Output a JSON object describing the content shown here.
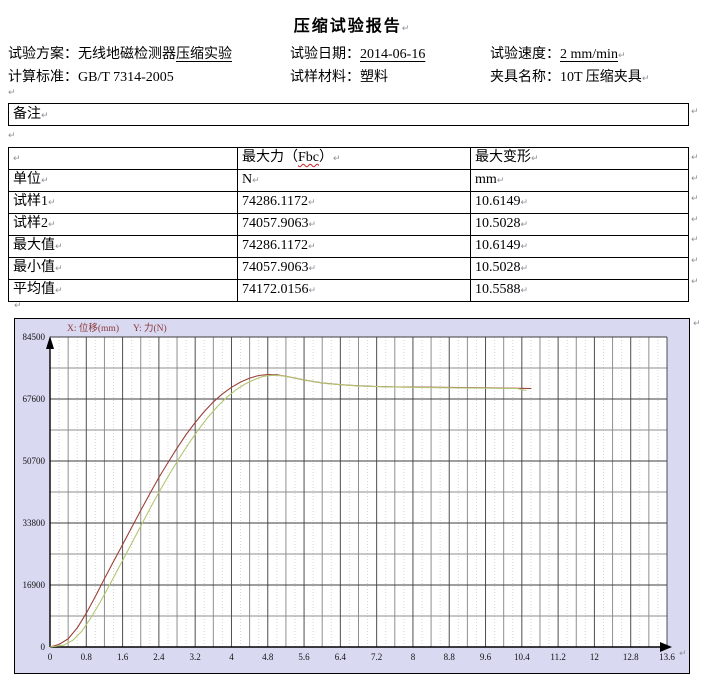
{
  "title": "压缩试验报告",
  "pilcrow": "↵",
  "header_fields": {
    "scheme_label": "试验方案：",
    "scheme_value": "无线地磁检测器",
    "scheme_underlined": "压缩实验",
    "date_label": "试验日期：",
    "date_value": "2014-06-16",
    "speed_label": "试验速度：",
    "speed_value": "2 mm/min",
    "standard_label": "计算标准：",
    "standard_value": "GB/T 7314-2005",
    "material_label": "试样材料：",
    "material_value": "塑料",
    "fixture_label": "夹具名称：",
    "fixture_value": "10T 压缩夹具"
  },
  "remarks_label": "备注",
  "table": {
    "header_col2_prefix": "最大力（",
    "header_col2_term": "Fbc",
    "header_col2_suffix": "）",
    "header_col3": "最大变形",
    "rows": [
      [
        "单位",
        "N",
        "mm"
      ],
      [
        "试样1",
        "74286.1172",
        "10.6149"
      ],
      [
        "试样2",
        "74057.9063",
        "10.5028"
      ],
      [
        "最大值",
        "74286.1172",
        "10.6149"
      ],
      [
        "最小值",
        "74057.9063",
        "10.5028"
      ],
      [
        "平均值",
        "74172.0156",
        "10.5588"
      ]
    ]
  },
  "chart_data": {
    "type": "line",
    "legend_x": "X: 位移(mm)",
    "legend_y": "Y: 力(N)",
    "xlabel": "位移(mm)",
    "ylabel": "力(N)",
    "xlim": [
      0,
      13.6
    ],
    "ylim": [
      0,
      84500
    ],
    "x_tick_step": 0.8,
    "x_minor_step": 0.4,
    "y_tick_step": 16900,
    "y_minor_step": 8450,
    "grid": true,
    "legend_position": "top-left",
    "x_tick_labels": [
      "0",
      "0.8",
      "1.6",
      "2.4",
      "3.2",
      "4",
      "4.8",
      "5.6",
      "6.4",
      "7.2",
      "8",
      "8.8",
      "9.6",
      "10.4",
      "11.2",
      "12",
      "12.8",
      "13.6"
    ],
    "y_tick_labels": [
      "0",
      "16900",
      "33800",
      "50700",
      "67600",
      "84500"
    ],
    "panel_bg": "#d9d9f2",
    "plot_bg": "#ffffff",
    "legend_color": "#8b3a3a",
    "series": [
      {
        "name": "试样1",
        "color": "#9a4038",
        "points": [
          [
            0,
            0
          ],
          [
            0.2,
            700
          ],
          [
            0.4,
            2200
          ],
          [
            0.6,
            5200
          ],
          [
            0.8,
            9200
          ],
          [
            1.0,
            13800
          ],
          [
            1.2,
            18600
          ],
          [
            1.4,
            23300
          ],
          [
            1.6,
            27900
          ],
          [
            1.8,
            32600
          ],
          [
            2.0,
            37200
          ],
          [
            2.2,
            41800
          ],
          [
            2.4,
            46200
          ],
          [
            2.6,
            50300
          ],
          [
            2.8,
            54200
          ],
          [
            3.0,
            57900
          ],
          [
            3.2,
            61200
          ],
          [
            3.4,
            64200
          ],
          [
            3.6,
            66800
          ],
          [
            3.8,
            69000
          ],
          [
            4.0,
            70800
          ],
          [
            4.2,
            72200
          ],
          [
            4.4,
            73300
          ],
          [
            4.6,
            74000
          ],
          [
            4.8,
            74286
          ],
          [
            5.0,
            74200
          ],
          [
            5.2,
            73800
          ],
          [
            5.4,
            73300
          ],
          [
            5.6,
            72800
          ],
          [
            5.8,
            72400
          ],
          [
            6.0,
            72000
          ],
          [
            6.4,
            71500
          ],
          [
            6.8,
            71200
          ],
          [
            7.2,
            71000
          ],
          [
            7.6,
            70900
          ],
          [
            8.0,
            70850
          ],
          [
            8.8,
            70750
          ],
          [
            9.6,
            70650
          ],
          [
            10.2,
            70550
          ],
          [
            10.61,
            70450
          ]
        ]
      },
      {
        "name": "试样2",
        "color": "#b3c571",
        "points": [
          [
            0,
            0
          ],
          [
            0.3,
            500
          ],
          [
            0.5,
            1800
          ],
          [
            0.7,
            4300
          ],
          [
            0.9,
            7900
          ],
          [
            1.1,
            12100
          ],
          [
            1.3,
            16600
          ],
          [
            1.5,
            21300
          ],
          [
            1.7,
            25900
          ],
          [
            1.9,
            30600
          ],
          [
            2.1,
            35300
          ],
          [
            2.3,
            39900
          ],
          [
            2.5,
            44300
          ],
          [
            2.7,
            48500
          ],
          [
            2.9,
            52500
          ],
          [
            3.1,
            56200
          ],
          [
            3.3,
            59700
          ],
          [
            3.5,
            62900
          ],
          [
            3.7,
            65700
          ],
          [
            3.9,
            68100
          ],
          [
            4.1,
            70100
          ],
          [
            4.3,
            71700
          ],
          [
            4.5,
            72900
          ],
          [
            4.7,
            73800
          ],
          [
            4.9,
            74057
          ],
          [
            5.1,
            73950
          ],
          [
            5.3,
            73550
          ],
          [
            5.5,
            73050
          ],
          [
            5.7,
            72600
          ],
          [
            5.9,
            72200
          ],
          [
            6.1,
            71800
          ],
          [
            6.5,
            71400
          ],
          [
            6.9,
            71100
          ],
          [
            7.3,
            70950
          ],
          [
            7.7,
            70850
          ],
          [
            8.1,
            70750
          ],
          [
            8.9,
            70650
          ],
          [
            9.7,
            70550
          ],
          [
            10.3,
            70450
          ],
          [
            10.5,
            69900
          ]
        ]
      }
    ]
  }
}
